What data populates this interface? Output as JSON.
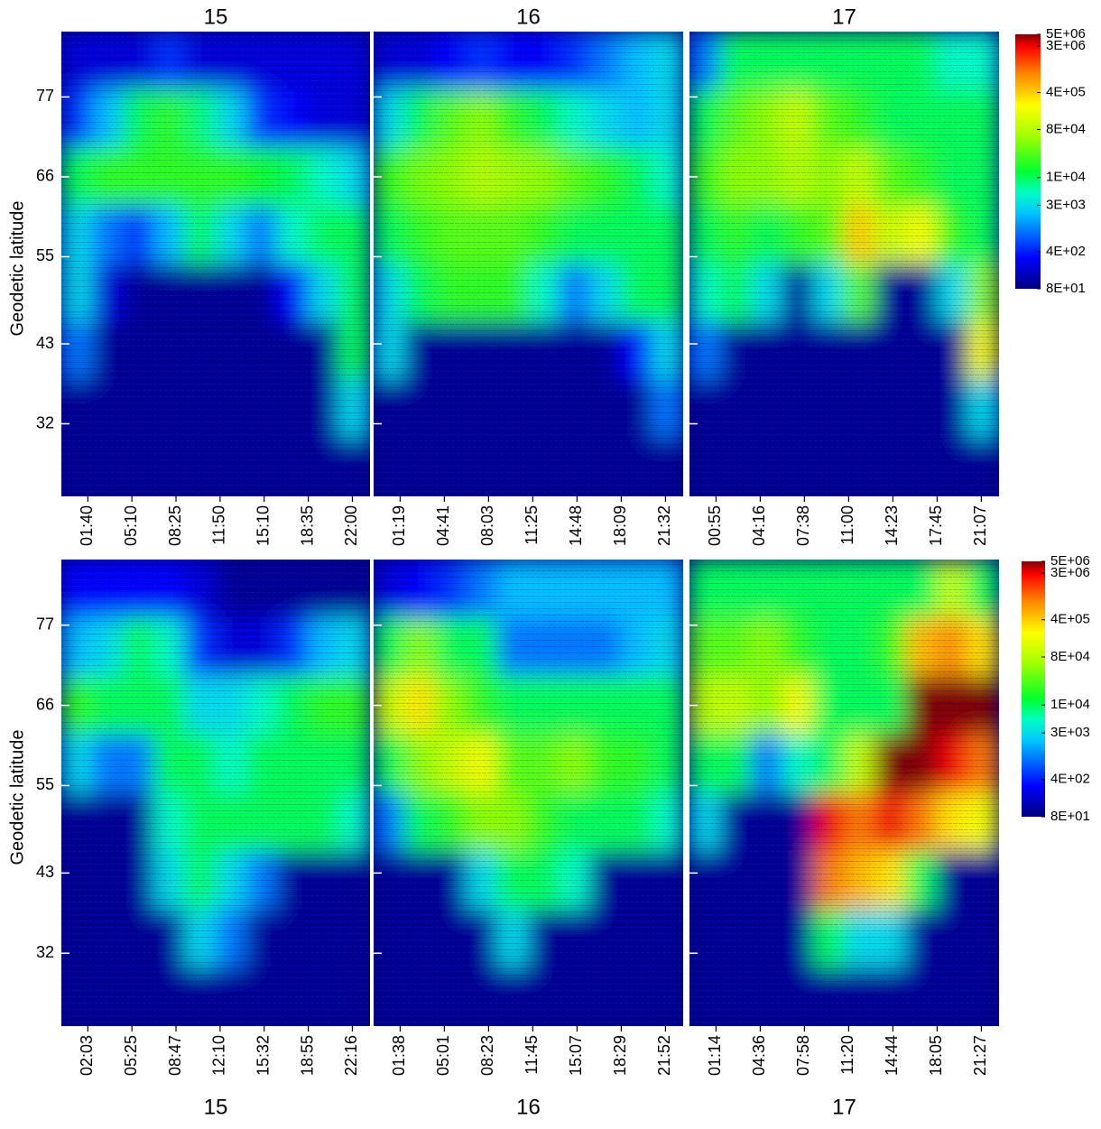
{
  "chart_data": [
    {
      "type": "heatmap",
      "title": "15",
      "ylabel": "Geodetic latitude",
      "categories": [
        "01:40",
        "05:10",
        "08:25",
        "11:50",
        "15:10",
        "18:35",
        "22:00"
      ],
      "ylim": [
        22,
        86
      ],
      "yticks": [
        32,
        43,
        55,
        66,
        77
      ],
      "y": [
        82,
        74,
        66,
        58,
        50,
        42,
        34,
        26
      ],
      "z": [
        [
          200.0,
          200.0,
          200.0,
          500.0,
          200.0,
          200.0,
          200.0,
          200.0,
          200.0,
          200.0
        ],
        [
          500.0,
          2000.0,
          10000.0,
          20000.0,
          8000.0,
          3000.0,
          500.0,
          300.0,
          200.0,
          200.0
        ],
        [
          10000.0,
          20000.0,
          20000.0,
          20000.0,
          20000.0,
          20000.0,
          15000.0,
          10000.0,
          5000.0,
          3000.0
        ],
        [
          3000.0,
          1000.0,
          500.0,
          2000.0,
          10000.0,
          3000.0,
          1000.0,
          5000.0,
          10000.0,
          10000.0
        ],
        [
          3000.0,
          200.0,
          100.0,
          100.0,
          100.0,
          100.0,
          100.0,
          300.0,
          3000.0,
          10000.0
        ],
        [
          1000.0,
          100.0,
          100.0,
          100.0,
          100.0,
          100.0,
          100.0,
          100.0,
          100.0,
          10000.0
        ],
        [
          100.0,
          100.0,
          100.0,
          100.0,
          100.0,
          100.0,
          100.0,
          100.0,
          100.0,
          3000.0
        ],
        [
          100.0,
          100.0,
          100.0,
          100.0,
          100.0,
          100.0,
          100.0,
          100.0,
          100.0,
          100.0
        ]
      ]
    },
    {
      "type": "heatmap",
      "title": "16",
      "categories": [
        "01:19",
        "04:41",
        "08:03",
        "11:25",
        "14:48",
        "18:09",
        "21:32"
      ],
      "ylim": [
        22,
        86
      ],
      "yticks": [
        32,
        43,
        55,
        66,
        77
      ],
      "y": [
        82,
        74,
        66,
        58,
        50,
        42,
        34,
        26
      ],
      "z": [
        [
          200.0,
          200.0,
          300.0,
          500.0,
          300.0,
          300.0,
          500.0,
          1000.0,
          2000.0,
          3000.0
        ],
        [
          3000.0,
          10000.0,
          30000.0,
          50000.0,
          20000.0,
          10000.0,
          5000.0,
          3000.0,
          2000.0,
          3000.0
        ],
        [
          20000.0,
          40000.0,
          50000.0,
          80000.0,
          60000.0,
          50000.0,
          30000.0,
          20000.0,
          10000.0,
          5000.0
        ],
        [
          10000.0,
          20000.0,
          30000.0,
          30000.0,
          30000.0,
          20000.0,
          10000.0,
          10000.0,
          10000.0,
          10000.0
        ],
        [
          3000.0,
          10000.0,
          20000.0,
          20000.0,
          20000.0,
          5000.0,
          1000.0,
          3000.0,
          10000.0,
          10000.0
        ],
        [
          3000.0,
          100.0,
          100.0,
          100.0,
          100.0,
          100.0,
          100.0,
          100.0,
          300.0,
          3000.0
        ],
        [
          100.0,
          100.0,
          100.0,
          100.0,
          100.0,
          100.0,
          100.0,
          100.0,
          100.0,
          1000.0
        ],
        [
          100.0,
          100.0,
          100.0,
          100.0,
          100.0,
          100.0,
          100.0,
          100.0,
          100.0,
          100.0
        ]
      ]
    },
    {
      "type": "heatmap",
      "title": "17",
      "categories": [
        "00:55",
        "04:16",
        "07:38",
        "11:00",
        "14:23",
        "17:45",
        "21:07"
      ],
      "ylim": [
        22,
        86
      ],
      "yticks": [
        32,
        43,
        55,
        66,
        77
      ],
      "y": [
        82,
        74,
        66,
        58,
        50,
        42,
        34,
        26
      ],
      "z": [
        [
          1000.0,
          10000.0,
          10000.0,
          10000.0,
          10000.0,
          10000.0,
          10000.0,
          10000.0,
          5000.0,
          5000.0
        ],
        [
          10000.0,
          30000.0,
          50000.0,
          100000.0,
          30000.0,
          20000.0,
          10000.0,
          10000.0,
          10000.0,
          10000.0
        ],
        [
          20000.0,
          50000.0,
          50000.0,
          80000.0,
          50000.0,
          100000.0,
          30000.0,
          20000.0,
          10000.0,
          10000.0
        ],
        [
          10000.0,
          20000.0,
          10000.0,
          20000.0,
          30000.0,
          400000.0,
          100000.0,
          200000.0,
          20000.0,
          10000.0
        ],
        [
          5000.0,
          10000.0,
          3000.0,
          100.0,
          3000.0,
          30000.0,
          100.0,
          100.0,
          3000.0,
          50000.0
        ],
        [
          1000.0,
          100.0,
          100.0,
          100.0,
          100.0,
          100.0,
          100.0,
          100.0,
          100.0,
          200000.0
        ],
        [
          100.0,
          100.0,
          100.0,
          100.0,
          100.0,
          100.0,
          100.0,
          100.0,
          100.0,
          3000.0
        ],
        [
          100.0,
          100.0,
          100.0,
          100.0,
          100.0,
          100.0,
          100.0,
          100.0,
          100.0,
          100.0
        ]
      ],
      "colorbar": {
        "log": true,
        "clim": [
          80,
          5000000
        ],
        "cticks": [
          {
            "value": 5000000,
            "label": "5E+06"
          },
          {
            "value": 3000000,
            "label": "3E+06"
          },
          {
            "value": 400000,
            "label": "4E+05"
          },
          {
            "value": 80000,
            "label": "8E+04"
          },
          {
            "value": 10000,
            "label": "1E+04"
          },
          {
            "value": 3000,
            "label": "3E+03"
          },
          {
            "value": 400,
            "label": "4E+02"
          },
          {
            "value": 80,
            "label": "8E+01"
          }
        ]
      }
    },
    {
      "type": "heatmap",
      "title": "15",
      "ylabel": "Geodetic latitude",
      "categories": [
        "02:03",
        "05:25",
        "08:47",
        "12:10",
        "15:32",
        "18:55",
        "22:16"
      ],
      "ylim": [
        22,
        86
      ],
      "yticks": [
        32,
        43,
        55,
        66,
        77
      ],
      "y": [
        82,
        74,
        66,
        58,
        50,
        42,
        34,
        26
      ],
      "z": [
        [
          300.0,
          300.0,
          300.0,
          300.0,
          200.0,
          100.0,
          100.0,
          100.0,
          100.0,
          100.0
        ],
        [
          2000.0,
          3000.0,
          10000.0,
          5000.0,
          500.0,
          200.0,
          200.0,
          500.0,
          2000.0,
          3000.0
        ],
        [
          20000.0,
          10000.0,
          10000.0,
          10000.0,
          3000.0,
          3000.0,
          5000.0,
          10000.0,
          20000.0,
          20000.0
        ],
        [
          3000.0,
          1000.0,
          1000.0,
          10000.0,
          10000.0,
          5000.0,
          10000.0,
          10000.0,
          10000.0,
          10000.0
        ],
        [
          100.0,
          100.0,
          100.0,
          5000.0,
          10000.0,
          10000.0,
          10000.0,
          10000.0,
          10000.0,
          5000.0
        ],
        [
          100.0,
          100.0,
          100.0,
          3000.0,
          10000.0,
          3000.0,
          1000.0,
          100.0,
          100.0,
          100.0
        ],
        [
          100.0,
          100.0,
          100.0,
          100.0,
          3000.0,
          1000.0,
          100.0,
          100.0,
          100.0,
          100.0
        ],
        [
          100.0,
          100.0,
          100.0,
          100.0,
          100.0,
          100.0,
          100.0,
          100.0,
          100.0,
          100.0
        ]
      ]
    },
    {
      "type": "heatmap",
      "title": "16",
      "categories": [
        "01:38",
        "05:01",
        "08:23",
        "11:45",
        "15:07",
        "18:29",
        "21:52"
      ],
      "ylim": [
        22,
        86
      ],
      "yticks": [
        32,
        43,
        55,
        66,
        77
      ],
      "y": [
        82,
        74,
        66,
        58,
        50,
        42,
        34,
        26
      ],
      "z": [
        [
          200.0,
          300.0,
          500.0,
          1000.0,
          2000.0,
          2000.0,
          2000.0,
          2000.0,
          2000.0,
          2000.0
        ],
        [
          10000.0,
          50000.0,
          10000.0,
          10000.0,
          1000.0,
          1000.0,
          1000.0,
          1000.0,
          2000.0,
          3000.0
        ],
        [
          100000.0,
          300000.0,
          50000.0,
          20000.0,
          10000.0,
          10000.0,
          10000.0,
          10000.0,
          10000.0,
          10000.0
        ],
        [
          10000.0,
          50000.0,
          100000.0,
          200000.0,
          30000.0,
          30000.0,
          50000.0,
          20000.0,
          20000.0,
          10000.0
        ],
        [
          1000.0,
          10000.0,
          20000.0,
          50000.0,
          50000.0,
          20000.0,
          10000.0,
          10000.0,
          10000.0,
          5000.0
        ],
        [
          100.0,
          100.0,
          100.0,
          3000.0,
          10000.0,
          10000.0,
          5000.0,
          100.0,
          100.0,
          100.0
        ],
        [
          100.0,
          100.0,
          100.0,
          100.0,
          3000.0,
          100.0,
          100.0,
          100.0,
          100.0,
          100.0
        ],
        [
          100.0,
          100.0,
          100.0,
          100.0,
          100.0,
          100.0,
          100.0,
          100.0,
          100.0,
          100.0
        ]
      ]
    },
    {
      "type": "heatmap",
      "title": "17",
      "categories": [
        "01:14",
        "04:36",
        "07:58",
        "11:20",
        "14:44",
        "18:05",
        "21:27"
      ],
      "ylim": [
        22,
        86
      ],
      "yticks": [
        32,
        43,
        55,
        66,
        77
      ],
      "y": [
        82,
        74,
        66,
        58,
        50,
        42,
        34,
        26
      ],
      "z": [
        [
          10000.0,
          10000.0,
          10000.0,
          10000.0,
          10000.0,
          10000.0,
          10000.0,
          10000.0,
          100000.0,
          10000.0
        ],
        [
          30000.0,
          30000.0,
          50000.0,
          20000.0,
          10000.0,
          10000.0,
          20000.0,
          500000.0,
          800000.0,
          300000.0
        ],
        [
          80000.0,
          100000.0,
          50000.0,
          200000.0,
          10000.0,
          10000.0,
          10000.0,
          5000000.0,
          5000000.0,
          5000000.0
        ],
        [
          10000.0,
          10000.0,
          1000.0,
          5000.0,
          10000.0,
          100000.0,
          5000000.0,
          5000000.0,
          3000000.0,
          1000000.0
        ],
        [
          3000.0,
          100.0,
          100.0,
          100.0,
          3000000.0,
          1000000.0,
          3000000.0,
          1000000.0,
          300000.0,
          200000.0
        ],
        [
          100.0,
          100.0,
          100.0,
          100.0,
          1000000.0,
          500000.0,
          300000.0,
          10000.0,
          100.0,
          100.0
        ],
        [
          100.0,
          100.0,
          100.0,
          100.0,
          10000.0,
          3000.0,
          3000.0,
          100.0,
          100.0,
          100.0
        ],
        [
          100.0,
          100.0,
          100.0,
          100.0,
          100.0,
          100.0,
          100.0,
          100.0,
          100.0,
          100.0
        ]
      ],
      "colorbar": {
        "log": true,
        "clim": [
          80,
          5000000
        ],
        "cticks": [
          {
            "value": 5000000,
            "label": "5E+06"
          },
          {
            "value": 3000000,
            "label": "3E+06"
          },
          {
            "value": 400000,
            "label": "4E+05"
          },
          {
            "value": 80000,
            "label": "8E+04"
          },
          {
            "value": 10000,
            "label": "1E+04"
          },
          {
            "value": 3000,
            "label": "3E+03"
          },
          {
            "value": 400,
            "label": "4E+02"
          },
          {
            "value": 80,
            "label": "8E+01"
          }
        ]
      }
    }
  ]
}
